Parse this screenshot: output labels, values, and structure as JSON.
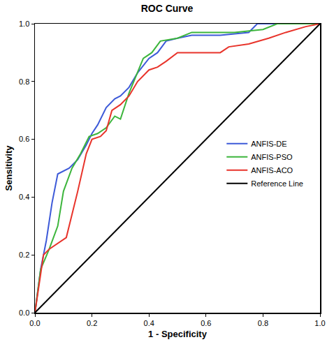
{
  "chart_data": {
    "type": "line",
    "title": "ROC Curve",
    "x_label": "1 - Specificity",
    "y_label": "Sensitivity",
    "xlim": [
      0,
      1
    ],
    "ylim": [
      0,
      1
    ],
    "xticks": [
      {
        "value": 0,
        "label": "0.0"
      },
      {
        "value": 0.2,
        "label": "0.2"
      },
      {
        "value": 0.4,
        "label": "0.4"
      },
      {
        "value": 0.6,
        "label": "0.6"
      },
      {
        "value": 0.8,
        "label": "0.8"
      },
      {
        "value": 1,
        "label": "1.0"
      }
    ],
    "yticks": [
      {
        "value": 0,
        "label": "0.0"
      },
      {
        "value": 0.2,
        "label": "0.2"
      },
      {
        "value": 0.4,
        "label": "0.4"
      },
      {
        "value": 0.6,
        "label": "0.6"
      },
      {
        "value": 0.8,
        "label": "0.8"
      },
      {
        "value": 1,
        "label": "1.0"
      }
    ],
    "grid": false,
    "legend": "right",
    "series": [
      {
        "name": "ANFIS-DE",
        "color": "#3d5ad8",
        "x": [
          0,
          0.02,
          0.04,
          0.06,
          0.08,
          0.1,
          0.12,
          0.15,
          0.18,
          0.2,
          0.22,
          0.25,
          0.28,
          0.3,
          0.33,
          0.36,
          0.4,
          0.43,
          0.46,
          0.5,
          0.55,
          0.65,
          0.75,
          0.78,
          1
        ],
        "values": [
          0,
          0.15,
          0.25,
          0.38,
          0.48,
          0.49,
          0.5,
          0.53,
          0.58,
          0.62,
          0.65,
          0.71,
          0.74,
          0.75,
          0.78,
          0.83,
          0.88,
          0.9,
          0.94,
          0.95,
          0.96,
          0.96,
          0.97,
          1,
          1
        ]
      },
      {
        "name": "ANFIS-PSO",
        "color": "#3cb53c",
        "x": [
          0,
          0.02,
          0.05,
          0.08,
          0.1,
          0.13,
          0.16,
          0.19,
          0.22,
          0.25,
          0.28,
          0.3,
          0.33,
          0.36,
          0.38,
          0.41,
          0.44,
          0.5,
          0.55,
          0.7,
          0.8,
          0.85,
          1
        ],
        "values": [
          0,
          0.15,
          0.22,
          0.3,
          0.42,
          0.5,
          0.55,
          0.61,
          0.62,
          0.64,
          0.68,
          0.67,
          0.76,
          0.83,
          0.88,
          0.9,
          0.94,
          0.95,
          0.97,
          0.97,
          0.98,
          1,
          1
        ]
      },
      {
        "name": "ANFIS-ACO",
        "color": "#e8332a",
        "x": [
          0,
          0.03,
          0.05,
          0.08,
          0.11,
          0.13,
          0.15,
          0.18,
          0.2,
          0.23,
          0.25,
          0.27,
          0.3,
          0.33,
          0.36,
          0.4,
          0.43,
          0.46,
          0.5,
          0.6,
          0.65,
          0.68,
          0.75,
          0.82,
          0.88,
          0.95,
          1
        ],
        "values": [
          0,
          0.2,
          0.22,
          0.24,
          0.26,
          0.34,
          0.42,
          0.55,
          0.6,
          0.61,
          0.63,
          0.7,
          0.72,
          0.75,
          0.8,
          0.84,
          0.85,
          0.87,
          0.9,
          0.9,
          0.9,
          0.92,
          0.93,
          0.95,
          0.97,
          0.99,
          1
        ]
      },
      {
        "name": "Reference Line",
        "color": "#000000",
        "x": [
          0,
          1
        ],
        "values": [
          0,
          1
        ]
      }
    ]
  }
}
